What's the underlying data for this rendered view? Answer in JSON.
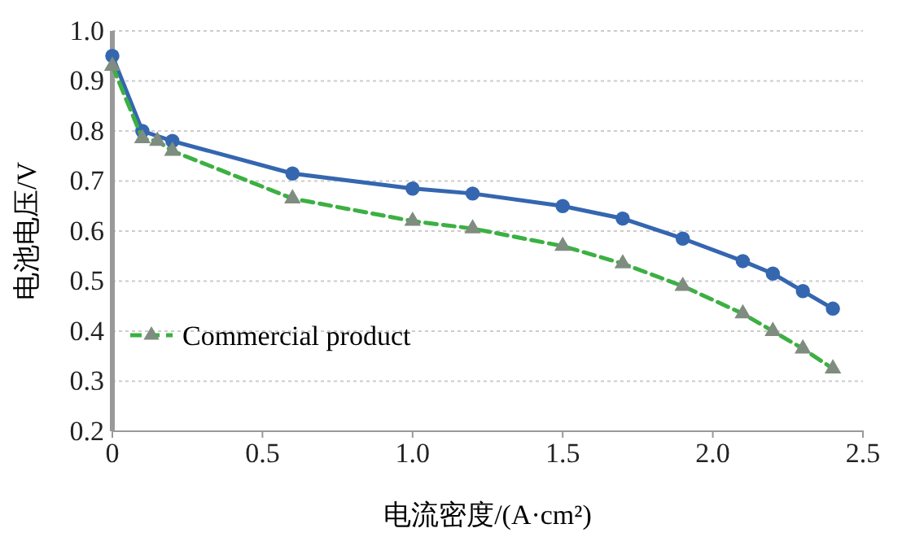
{
  "chart_data": {
    "type": "line",
    "xlabel": "电流密度/(A·cm²)",
    "ylabel": "电池电压/V",
    "xlim": [
      0,
      2.5
    ],
    "xticks": [
      {
        "value": 0,
        "label": "0"
      },
      0.5,
      {
        "value": 1,
        "label": "1.0"
      },
      1.5,
      {
        "value": 2,
        "label": "2.0"
      },
      2.5
    ],
    "ylim": [
      0.2,
      1.0
    ],
    "yticks": [
      0.2,
      0.3,
      0.4,
      0.5,
      0.6,
      0.7,
      0.8,
      0.9,
      {
        "value": 1,
        "label": "1.0"
      }
    ],
    "grid": "y",
    "legend": "left",
    "series": [
      {
        "color": "#3566b0",
        "marker": "circle",
        "line_style": "solid",
        "x": [
          0,
          0.1,
          0.2,
          0.6,
          1.0,
          1.2,
          1.5,
          1.7,
          1.9,
          2.1,
          2.2,
          2.3,
          2.4
        ],
        "values": [
          0.95,
          0.8,
          0.78,
          0.715,
          0.685,
          0.675,
          0.65,
          0.625,
          0.585,
          0.54,
          0.515,
          0.48,
          0.445
        ]
      },
      {
        "name": "Commercial product",
        "color": "#3cb043",
        "marker": "triangle",
        "line_style": "dashed",
        "x": [
          0,
          0.1,
          0.15,
          0.2,
          0.6,
          1.0,
          1.2,
          1.5,
          1.7,
          1.9,
          2.1,
          2.2,
          2.3,
          2.4
        ],
        "values": [
          0.93,
          0.785,
          0.78,
          0.76,
          0.665,
          0.62,
          0.605,
          0.57,
          0.535,
          0.49,
          0.435,
          0.4,
          0.365,
          0.325
        ]
      }
    ]
  }
}
